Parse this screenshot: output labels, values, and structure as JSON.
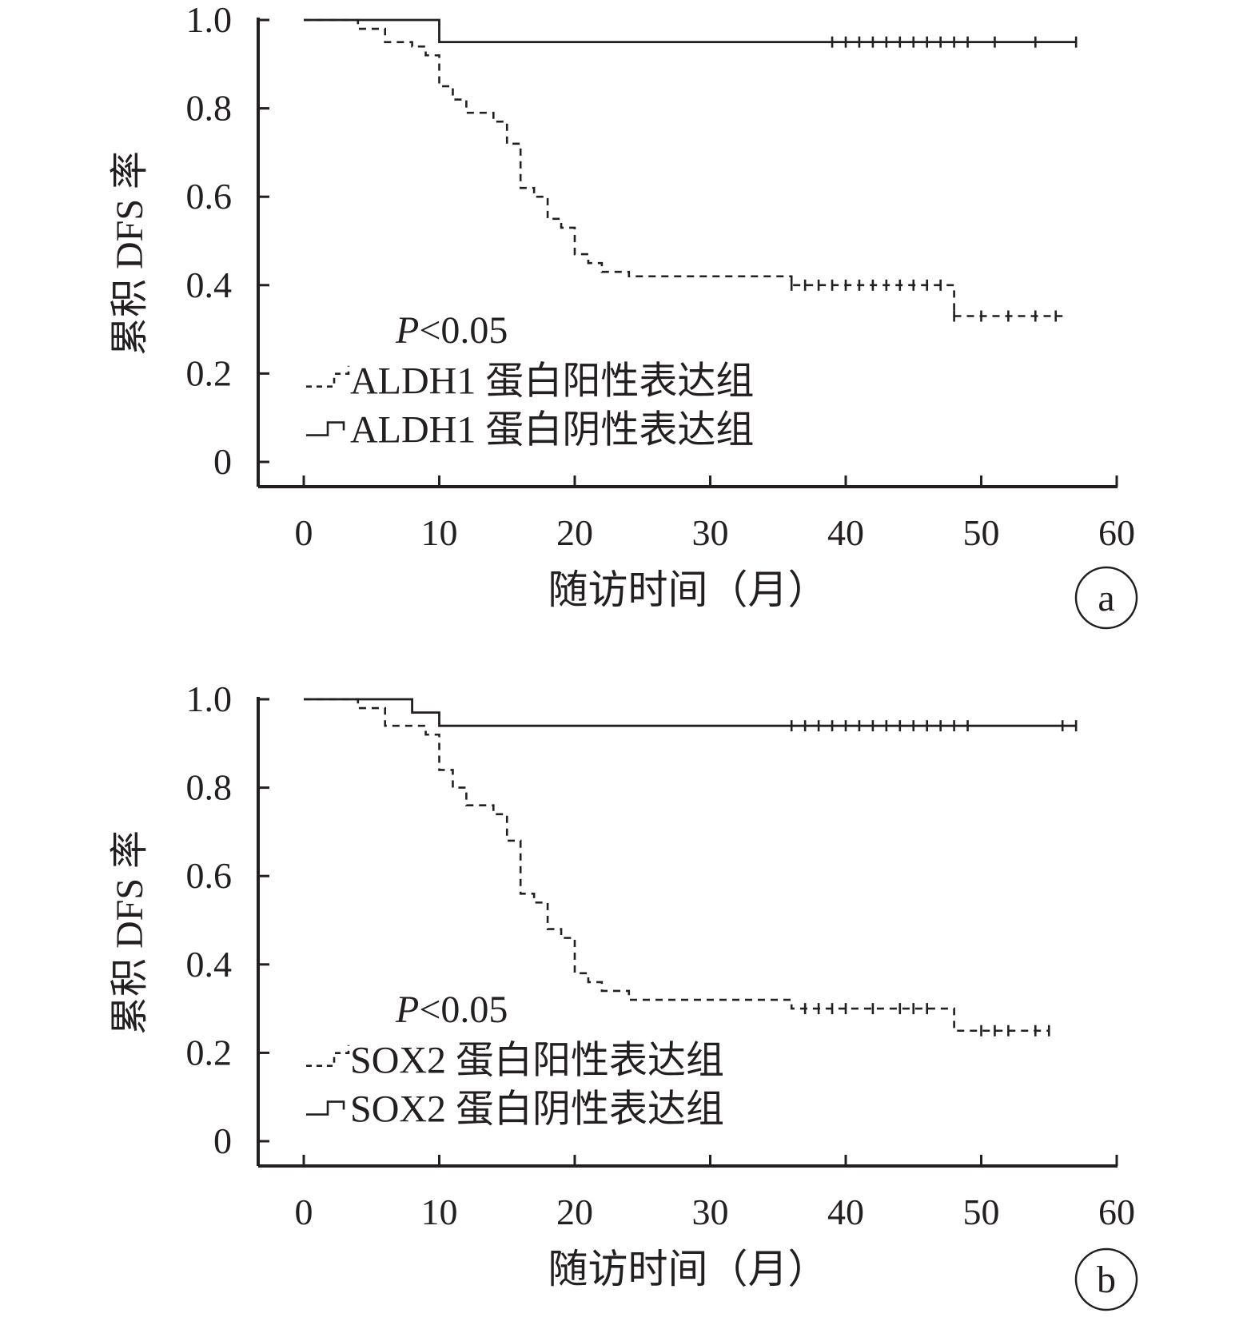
{
  "chart_data": [
    {
      "panel_label": "a",
      "type": "line",
      "chart_kind": "kaplan-meier survival curve",
      "xlabel": "随访时间（月）",
      "ylabel": "累积 DFS 率",
      "xlim": [
        0,
        60
      ],
      "ylim": [
        0,
        1.0
      ],
      "x_ticks": [
        "0",
        "10",
        "20",
        "30",
        "40",
        "50",
        "60"
      ],
      "y_ticks": [
        "0",
        "0.2",
        "0.4",
        "0.6",
        "0.8",
        "1.0"
      ],
      "annotation": {
        "p_label": "P",
        "p_rest": "<0.05"
      },
      "grid": false,
      "legend_position": "lower-left",
      "series": [
        {
          "name": "ALDH1 蛋白阳性表达组",
          "style": "dashed",
          "steps": [
            [
              0,
              1.0
            ],
            [
              4,
              0.98
            ],
            [
              6,
              0.95
            ],
            [
              8,
              0.94
            ],
            [
              9,
              0.92
            ],
            [
              10,
              0.85
            ],
            [
              11,
              0.82
            ],
            [
              12,
              0.79
            ],
            [
              14,
              0.77
            ],
            [
              15,
              0.72
            ],
            [
              16,
              0.62
            ],
            [
              17,
              0.6
            ],
            [
              18,
              0.55
            ],
            [
              19,
              0.53
            ],
            [
              20,
              0.47
            ],
            [
              21,
              0.45
            ],
            [
              22,
              0.43
            ],
            [
              24,
              0.42
            ],
            [
              36,
              0.4
            ],
            [
              48,
              0.33
            ]
          ],
          "end_x": 56,
          "censored": [
            [
              36,
              0.4
            ],
            [
              37,
              0.4
            ],
            [
              38,
              0.4
            ],
            [
              39,
              0.4
            ],
            [
              40,
              0.4
            ],
            [
              41,
              0.4
            ],
            [
              42,
              0.4
            ],
            [
              43,
              0.4
            ],
            [
              44,
              0.4
            ],
            [
              45,
              0.4
            ],
            [
              46,
              0.4
            ],
            [
              47,
              0.4
            ],
            [
              48,
              0.33
            ],
            [
              50,
              0.33
            ],
            [
              52,
              0.33
            ],
            [
              54,
              0.33
            ],
            [
              55.5,
              0.33
            ]
          ]
        },
        {
          "name": "ALDH1 蛋白阴性表达组",
          "style": "solid",
          "steps": [
            [
              0,
              1.0
            ],
            [
              10,
              0.95
            ]
          ],
          "end_x": 57,
          "censored": [
            [
              39,
              0.95
            ],
            [
              40,
              0.95
            ],
            [
              41,
              0.95
            ],
            [
              42,
              0.95
            ],
            [
              43,
              0.95
            ],
            [
              44,
              0.95
            ],
            [
              45,
              0.95
            ],
            [
              46,
              0.95
            ],
            [
              47,
              0.95
            ],
            [
              48,
              0.95
            ],
            [
              49,
              0.95
            ],
            [
              51,
              0.95
            ],
            [
              54,
              0.95
            ],
            [
              57,
              0.95
            ]
          ]
        }
      ]
    },
    {
      "panel_label": "b",
      "type": "line",
      "chart_kind": "kaplan-meier survival curve",
      "xlabel": "随访时间（月）",
      "ylabel": "累积 DFS 率",
      "xlim": [
        0,
        60
      ],
      "ylim": [
        0,
        1.0
      ],
      "x_ticks": [
        "0",
        "10",
        "20",
        "30",
        "40",
        "50",
        "60"
      ],
      "y_ticks": [
        "0",
        "0.2",
        "0.4",
        "0.6",
        "0.8",
        "1.0"
      ],
      "annotation": {
        "p_label": "P",
        "p_rest": "<0.05"
      },
      "grid": false,
      "legend_position": "lower-left",
      "series": [
        {
          "name": "SOX2 蛋白阳性表达组",
          "style": "dashed",
          "steps": [
            [
              0,
              1.0
            ],
            [
              4,
              0.98
            ],
            [
              6,
              0.94
            ],
            [
              9,
              0.92
            ],
            [
              10,
              0.84
            ],
            [
              11,
              0.8
            ],
            [
              12,
              0.76
            ],
            [
              14,
              0.74
            ],
            [
              15,
              0.68
            ],
            [
              16,
              0.56
            ],
            [
              17,
              0.54
            ],
            [
              18,
              0.48
            ],
            [
              19,
              0.46
            ],
            [
              20,
              0.38
            ],
            [
              21,
              0.36
            ],
            [
              22,
              0.34
            ],
            [
              24,
              0.32
            ],
            [
              36,
              0.3
            ],
            [
              48,
              0.25
            ]
          ],
          "end_x": 55,
          "censored": [
            [
              37,
              0.3
            ],
            [
              38,
              0.3
            ],
            [
              39,
              0.3
            ],
            [
              40,
              0.3
            ],
            [
              42,
              0.3
            ],
            [
              44,
              0.3
            ],
            [
              45,
              0.3
            ],
            [
              46,
              0.3
            ],
            [
              50,
              0.25
            ],
            [
              51,
              0.25
            ],
            [
              52,
              0.25
            ],
            [
              54,
              0.25
            ],
            [
              55,
              0.25
            ]
          ]
        },
        {
          "name": "SOX2 蛋白阴性表达组",
          "style": "solid",
          "steps": [
            [
              0,
              1.0
            ],
            [
              8,
              0.97
            ],
            [
              10,
              0.94
            ]
          ],
          "end_x": 57,
          "censored": [
            [
              36,
              0.94
            ],
            [
              37,
              0.94
            ],
            [
              38,
              0.94
            ],
            [
              39,
              0.94
            ],
            [
              40,
              0.94
            ],
            [
              41,
              0.94
            ],
            [
              42,
              0.94
            ],
            [
              43,
              0.94
            ],
            [
              44,
              0.94
            ],
            [
              45,
              0.94
            ],
            [
              46,
              0.94
            ],
            [
              47,
              0.94
            ],
            [
              48,
              0.94
            ],
            [
              49,
              0.94
            ],
            [
              56,
              0.94
            ],
            [
              57,
              0.94
            ]
          ]
        }
      ]
    }
  ]
}
